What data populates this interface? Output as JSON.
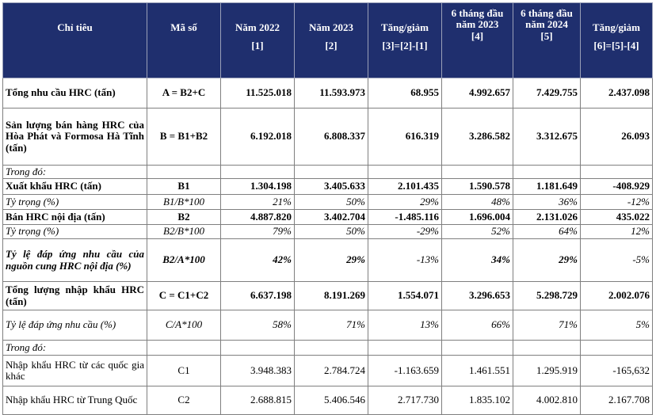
{
  "header": {
    "col_indicator": "Chỉ tiêu",
    "col_code": "Mã số",
    "col_2022": "Năm 2022",
    "col_2023": "Năm 2023",
    "col_change1": "Tăng/giảm",
    "col_h1_2023": "6 tháng đầu năm 2023",
    "col_h1_2024": "6 tháng đầu năm 2024",
    "col_change2": "Tăng/giảm",
    "sub_2022": "[1]",
    "sub_2023": "[2]",
    "sub_change1": "[3]=[2]-[1]",
    "sub_h1_2023": "[4]",
    "sub_h1_2024": "[5]",
    "sub_change2": "[6]=[5]-[4]"
  },
  "rows": [
    {
      "label": "Tổng nhu cầu HRC (tấn)",
      "code": "A = B2+C",
      "v1": "11.525.018",
      "v2": "11.593.973",
      "v3": "68.955",
      "v4": "4.992.657",
      "v5": "7.429.755",
      "v6": "2.437.098"
    },
    {
      "label": "Sản lượng bán hàng HRC của Hòa Phát và Formosa Hà Tĩnh (tấn)",
      "code": "B = B1+B2",
      "v1": "6.192.018",
      "v2": "6.808.337",
      "v3": "616.319",
      "v4": "3.286.582",
      "v5": "3.312.675",
      "v6": "26.093"
    },
    {
      "label": "Trong đó:",
      "code": "",
      "v1": "",
      "v2": "",
      "v3": "",
      "v4": "",
      "v5": "",
      "v6": ""
    },
    {
      "label": "Xuất khẩu HRC (tấn)",
      "code": "B1",
      "v1": "1.304.198",
      "v2": "3.405.633",
      "v3": "2.101.435",
      "v4": "1.590.578",
      "v5": "1.181.649",
      "v6": "-408.929"
    },
    {
      "label": "Tỷ trọng (%)",
      "code": "B1/B*100",
      "v1": "21%",
      "v2": "50%",
      "v3": "29%",
      "v4": "48%",
      "v5": "36%",
      "v6": "-12%"
    },
    {
      "label": "Bán HRC nội địa (tấn)",
      "code": "B2",
      "v1": "4.887.820",
      "v2": "3.402.704",
      "v3": "-1.485.116",
      "v4": "1.696.004",
      "v5": "2.131.026",
      "v6": "435.022"
    },
    {
      "label": "Tỷ trọng (%)",
      "code": "B2/B*100",
      "v1": "79%",
      "v2": "50%",
      "v3": "-29%",
      "v4": "52%",
      "v5": "64%",
      "v6": "12%"
    },
    {
      "label": "Tỷ lệ đáp ứng nhu cầu của nguồn cung HRC nội địa (%)",
      "code": "B2/A*100",
      "v1": "42%",
      "v2": "29%",
      "v3": "-13%",
      "v4": "34%",
      "v5": "29%",
      "v6": "-5%"
    },
    {
      "label": "Tổng lượng nhập khẩu HRC (tấn)",
      "code": "C = C1+C2",
      "v1": "6.637.198",
      "v2": "8.191.269",
      "v3": "1.554.071",
      "v4": "3.296.653",
      "v5": "5.298.729",
      "v6": "2.002.076"
    },
    {
      "label": "Tỷ lệ đáp ứng nhu cầu (%)",
      "code": "C/A*100",
      "v1": "58%",
      "v2": "71%",
      "v3": "13%",
      "v4": "66%",
      "v5": "71%",
      "v6": "5%"
    },
    {
      "label": "Trong đó:",
      "code": "",
      "v1": "",
      "v2": "",
      "v3": "",
      "v4": "",
      "v5": "",
      "v6": ""
    },
    {
      "label": "Nhập khẩu HRC từ các quốc gia khác",
      "code": "C1",
      "v1": "3.948.383",
      "v2": "2.784.724",
      "v3": "-1.163.659",
      "v4": "1.461.551",
      "v5": "1.295.919",
      "v6": "-165,632"
    },
    {
      "label": "Nhập khẩu HRC từ Trung Quốc",
      "code": "C2",
      "v1": "2.688.815",
      "v2": "5.406.546",
      "v3": "2.717.730",
      "v4": "1.835.102",
      "v5": "4.002.810",
      "v6": "2.167.708"
    }
  ]
}
